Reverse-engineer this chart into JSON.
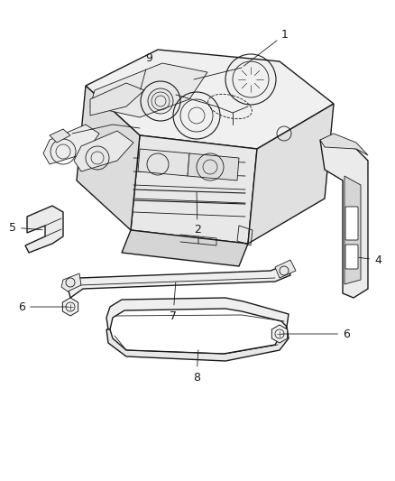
{
  "background_color": "#ffffff",
  "line_color": "#1a1a1a",
  "label_color": "#1a1a1a",
  "fig_width": 4.38,
  "fig_height": 5.33,
  "dpi": 100,
  "label_fs": 9,
  "leader_lw": 0.6,
  "lw_main": 1.0,
  "lw_thin": 0.6,
  "lw_med": 0.8,
  "tank_fill": "#f5f5f5",
  "tank_fill_dark": "#e8e8e8",
  "tank_fill_darker": "#dedede"
}
